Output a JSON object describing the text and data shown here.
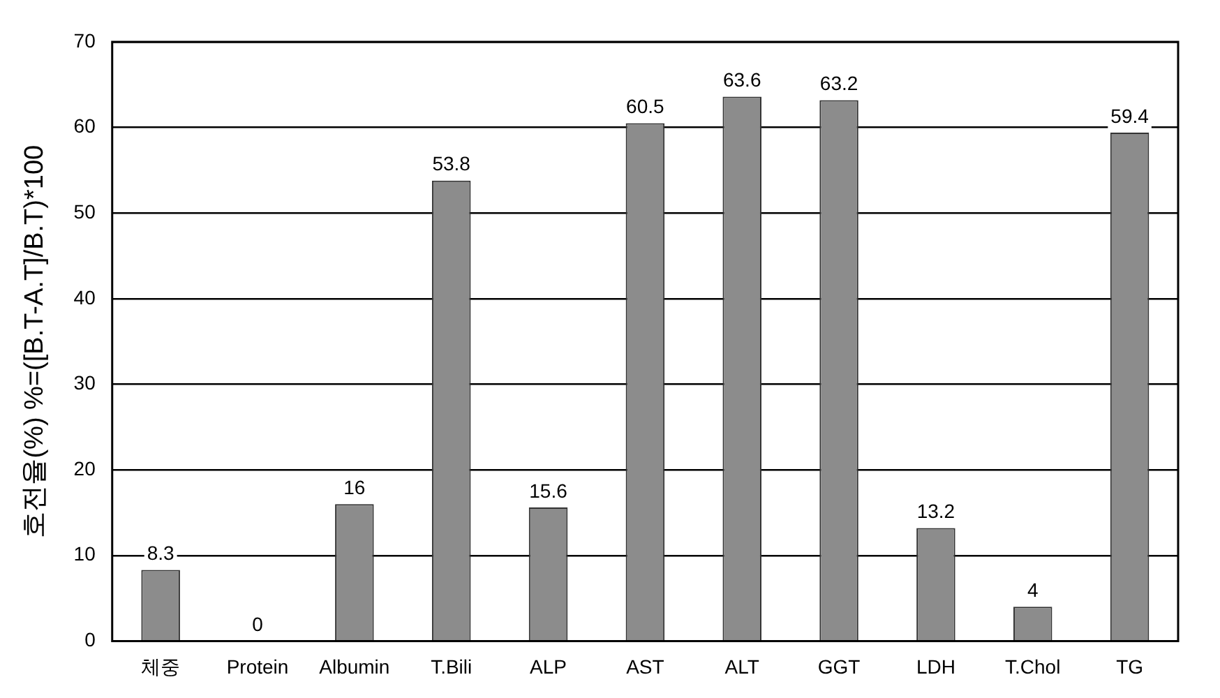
{
  "chart_data": {
    "type": "bar",
    "ylabel": "호전율(%) %=([B.T-A.T]/B.T)*100",
    "categories": [
      "체중",
      "Protein",
      "Albumin",
      "T.Bili",
      "ALP",
      "AST",
      "ALT",
      "GGT",
      "LDH",
      "T.Chol",
      "TG"
    ],
    "values": [
      8.3,
      0,
      16,
      53.8,
      15.6,
      60.5,
      63.6,
      63.2,
      13.2,
      4,
      59.4
    ],
    "color": "#8c8c8c",
    "ylim": [
      0,
      70
    ],
    "yticks": [
      0,
      10,
      20,
      30,
      40,
      50,
      60,
      70
    ],
    "grid": "y",
    "data_labels": true
  }
}
